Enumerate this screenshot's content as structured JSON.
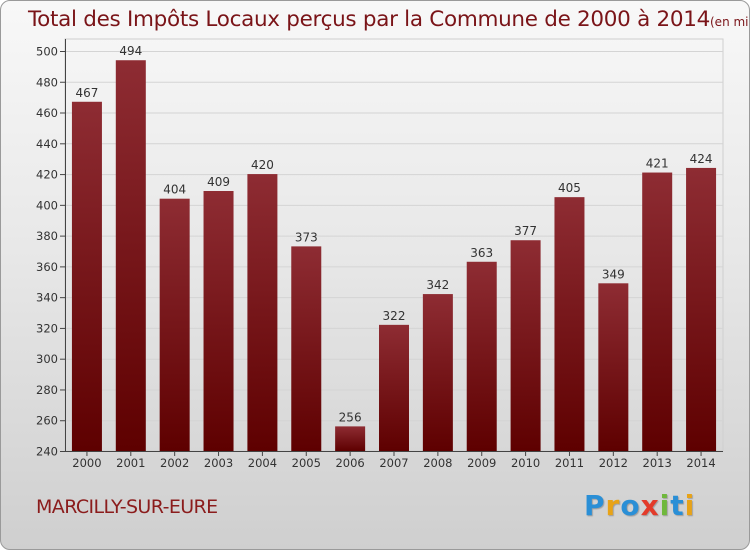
{
  "title": "Total des Impôts Locaux perçus par la Commune de 2000 à 2014",
  "unit": "(en milliers d'€)",
  "commune": "MARCILLY-SUR-EURE",
  "logo": {
    "letters": [
      {
        "ch": "P",
        "color": "#2a8fd6"
      },
      {
        "ch": "r",
        "color": "#e8a317"
      },
      {
        "ch": "o",
        "color": "#2a8fd6"
      },
      {
        "ch": "x",
        "color": "#e33b2a"
      },
      {
        "ch": "i",
        "color": "#6fb83c"
      },
      {
        "ch": "t",
        "color": "#2a8fd6"
      },
      {
        "ch": "i",
        "color": "#e8a317"
      }
    ]
  },
  "colors": {
    "bar_top": "#8e2c33",
    "bar_bottom": "#5e0000",
    "accent": "#7a1418"
  },
  "chart_data": {
    "type": "bar",
    "categories": [
      "2000",
      "2001",
      "2002",
      "2003",
      "2004",
      "2005",
      "2006",
      "2007",
      "2008",
      "2009",
      "2010",
      "2011",
      "2012",
      "2013",
      "2014"
    ],
    "values": [
      467,
      494,
      404,
      409,
      420,
      373,
      256,
      322,
      342,
      363,
      377,
      405,
      349,
      421,
      424
    ],
    "title": "Total des Impôts Locaux perçus par la Commune de 2000 à 2014",
    "xlabel": "",
    "ylabel": "",
    "ylim": [
      240,
      500
    ],
    "yticks": [
      240,
      260,
      280,
      300,
      320,
      340,
      360,
      380,
      400,
      420,
      440,
      460,
      480,
      500
    ],
    "grid": true,
    "data_labels": true
  }
}
